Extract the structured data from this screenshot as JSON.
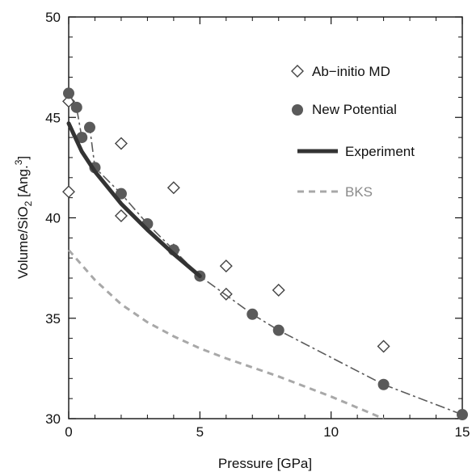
{
  "chart_data": {
    "type": "scatter",
    "title": "",
    "xlabel": "Pressure [GPa]",
    "ylabel_parts": {
      "prefix": "Volume/SiO",
      "sub": "2",
      "mid": " [Ang.",
      "sup": "3",
      "suffix": "]"
    },
    "xlim": [
      0,
      15
    ],
    "ylim": [
      30,
      50
    ],
    "x_ticks": [
      0,
      5,
      10,
      15
    ],
    "y_ticks": [
      30,
      35,
      40,
      45,
      50
    ],
    "grid": false,
    "legend_position": "top-right",
    "series": [
      {
        "name": "Ab−initio MD",
        "style": "open-diamond",
        "color": "#444444",
        "points": [
          [
            0,
            45.8
          ],
          [
            0,
            41.3
          ],
          [
            2,
            43.7
          ],
          [
            2,
            40.1
          ],
          [
            4,
            41.5
          ],
          [
            4,
            38.4
          ],
          [
            6,
            37.6
          ],
          [
            6,
            36.2
          ],
          [
            8,
            36.4
          ],
          [
            12,
            33.6
          ]
        ]
      },
      {
        "name": "New Potential",
        "style": "filled-circle-dashed-line",
        "color": "#5a5a5a",
        "points": [
          [
            0,
            46.2
          ],
          [
            0.3,
            45.5
          ],
          [
            0.5,
            44.0
          ],
          [
            0.8,
            44.5
          ],
          [
            1.0,
            42.5
          ],
          [
            2,
            41.2
          ],
          [
            3,
            39.7
          ],
          [
            4,
            38.4
          ],
          [
            5,
            37.1
          ],
          [
            7,
            35.2
          ],
          [
            8,
            34.4
          ],
          [
            12,
            31.7
          ],
          [
            15,
            30.2
          ]
        ]
      },
      {
        "name": "Experiment",
        "style": "thick-solid-line",
        "color": "#333333",
        "points": [
          [
            0,
            44.7
          ],
          [
            0.5,
            43.3
          ],
          [
            1,
            42.3
          ],
          [
            2,
            40.7
          ],
          [
            3,
            39.4
          ],
          [
            4,
            38.2
          ],
          [
            5,
            37.1
          ]
        ]
      },
      {
        "name": "BKS",
        "style": "dashed-line",
        "color": "#a8a8a8",
        "points": [
          [
            0,
            38.4
          ],
          [
            1,
            36.9
          ],
          [
            2,
            35.7
          ],
          [
            3,
            34.8
          ],
          [
            4,
            34.1
          ],
          [
            5,
            33.5
          ],
          [
            6,
            33.0
          ],
          [
            8,
            32.1
          ],
          [
            10,
            31.1
          ],
          [
            12,
            30.0
          ]
        ]
      }
    ]
  }
}
